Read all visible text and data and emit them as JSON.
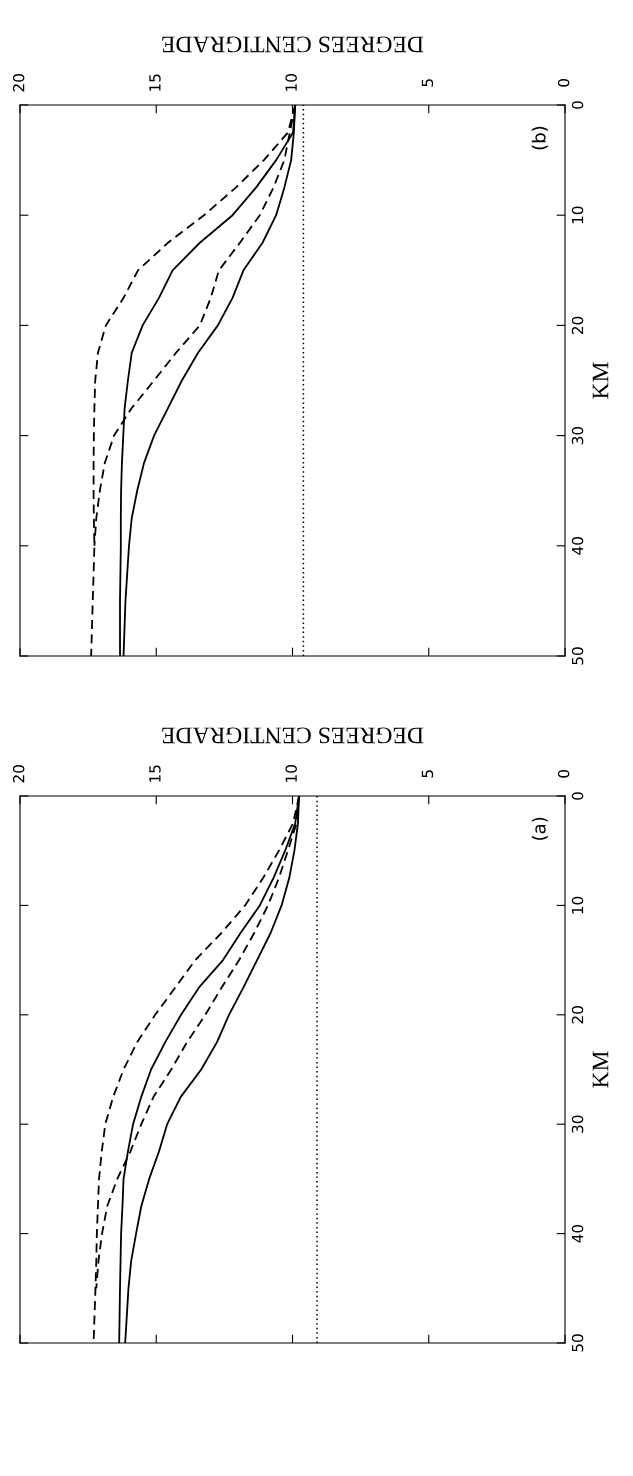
{
  "chart_data": [
    {
      "type": "line",
      "xlabel": "DEGREES CENTIGRADE",
      "ylabel": "KM",
      "xlim": [
        20,
        0
      ],
      "ylim": [
        50,
        0
      ],
      "xticks": [
        0,
        5,
        10,
        15,
        20
      ],
      "yticks": [
        0,
        10,
        20,
        30,
        40,
        50
      ],
      "annotations": [
        "(b)"
      ],
      "ref_lines": [
        {
          "axis": "x",
          "value": 9.6,
          "line_style": "dotted",
          "color": "#000000"
        }
      ],
      "series": [
        {
          "color": "#000000",
          "line_style": "dashed",
          "x": [
            9.9,
            10.17,
            11.05,
            12.08,
            13.25,
            14.57,
            15.67,
            16.2,
            16.85,
            17.14,
            17.24,
            17.27,
            17.29,
            17.3,
            17.3,
            17.29,
            17.27,
            17.33,
            17.39
          ],
          "values": [
            0,
            2.5,
            5,
            7.5,
            10,
            12.5,
            15,
            17.5,
            20,
            22.5,
            25,
            27.5,
            30,
            32.5,
            35,
            37.5,
            40,
            45,
            50
          ]
        },
        {
          "color": "#000000",
          "line_style": "solid",
          "x": [
            9.9,
            9.98,
            10.6,
            11.34,
            12.2,
            13.4,
            14.4,
            14.9,
            15.5,
            15.9,
            16.04,
            16.16,
            16.21,
            16.26,
            16.29,
            16.3,
            16.3,
            16.33,
            16.33
          ],
          "values": [
            0,
            2.5,
            5,
            7.5,
            10,
            12.5,
            15,
            17.5,
            20,
            22.5,
            25,
            27.5,
            30,
            32.5,
            35,
            37.5,
            40,
            45,
            50
          ]
        },
        {
          "color": "#000000",
          "line_style": "dashed",
          "x": [
            9.9,
            10.1,
            10.3,
            10.7,
            11.2,
            11.93,
            12.7,
            13.0,
            13.4,
            14.28,
            15.08,
            15.9,
            16.55,
            16.89,
            17.07,
            17.2,
            17.27
          ],
          "values": [
            0,
            2.5,
            5,
            7.5,
            10,
            12.5,
            15,
            17.5,
            20,
            22.5,
            25,
            27.5,
            30,
            32.5,
            35,
            37.5,
            40
          ]
        },
        {
          "color": "#000000",
          "line_style": "solid",
          "x": [
            9.9,
            9.95,
            10.05,
            10.3,
            10.6,
            11.1,
            11.8,
            12.2,
            12.74,
            13.47,
            14.06,
            14.57,
            15.08,
            15.45,
            15.7,
            15.9,
            16.0,
            16.13,
            16.2
          ],
          "values": [
            0,
            2.5,
            5,
            7.5,
            10,
            12.5,
            15,
            17.5,
            20,
            22.5,
            25,
            27.5,
            30,
            32.5,
            35,
            37.5,
            40,
            45,
            50
          ]
        }
      ]
    },
    {
      "type": "line",
      "xlabel": "DEGREES CENTIGRADE",
      "ylabel": "KM",
      "xlim": [
        20,
        0
      ],
      "ylim": [
        50,
        0
      ],
      "xticks": [
        0,
        5,
        10,
        15,
        20
      ],
      "yticks": [
        0,
        10,
        20,
        30,
        40,
        50
      ],
      "annotations": [
        "(a)"
      ],
      "ref_lines": [
        {
          "axis": "x",
          "value": 9.1,
          "line_style": "dotted",
          "color": "#000000"
        }
      ],
      "series": [
        {
          "color": "#000000",
          "line_style": "dashed",
          "x": [
            9.76,
            9.98,
            10.5,
            11.08,
            11.74,
            12.6,
            13.57,
            14.3,
            15.04,
            15.7,
            16.2,
            16.58,
            16.87,
            17.0,
            17.1,
            17.14,
            17.18,
            17.2,
            17.23,
            17.3
          ],
          "values": [
            0,
            2.5,
            5,
            7.5,
            10,
            12.5,
            15,
            17.5,
            20,
            22.5,
            25,
            27.5,
            30,
            32.5,
            35,
            37.5,
            40,
            42.5,
            45,
            50
          ]
        },
        {
          "color": "#000000",
          "line_style": "solid",
          "x": [
            9.76,
            9.9,
            10.27,
            10.7,
            11.2,
            11.9,
            12.55,
            13.43,
            14.09,
            14.67,
            15.19,
            15.55,
            15.85,
            16.04,
            16.2,
            16.24,
            16.29,
            16.31,
            16.33,
            16.36
          ],
          "values": [
            0,
            2.5,
            5,
            7.5,
            10,
            12.5,
            15,
            17.5,
            20,
            22.5,
            25,
            27.5,
            30,
            32.5,
            35,
            37.5,
            40,
            42.5,
            45,
            50
          ]
        },
        {
          "color": "#000000",
          "line_style": "dashed",
          "x": [
            9.76,
            9.85,
            10.17,
            10.5,
            10.9,
            11.4,
            11.96,
            12.6,
            13.2,
            13.87,
            14.45,
            15.1,
            15.55,
            15.95,
            16.43,
            16.8,
            16.99,
            17.12,
            17.2
          ],
          "values": [
            0,
            2.5,
            5,
            7.5,
            10,
            12.5,
            15,
            17.5,
            20,
            22.5,
            25,
            27.5,
            30,
            32.5,
            35,
            37.5,
            40,
            42.5,
            45
          ]
        },
        {
          "color": "#000000",
          "line_style": "solid",
          "x": [
            9.76,
            9.8,
            9.93,
            10.12,
            10.4,
            10.8,
            11.3,
            11.8,
            12.33,
            12.77,
            13.35,
            14.1,
            14.6,
            14.9,
            15.26,
            15.55,
            15.74,
            15.92,
            16.02,
            16.14
          ],
          "values": [
            0,
            2.5,
            5,
            7.5,
            10,
            12.5,
            15,
            17.5,
            20,
            22.5,
            25,
            27.5,
            30,
            32.5,
            35,
            37.5,
            40,
            42.5,
            45,
            50
          ]
        }
      ]
    }
  ]
}
